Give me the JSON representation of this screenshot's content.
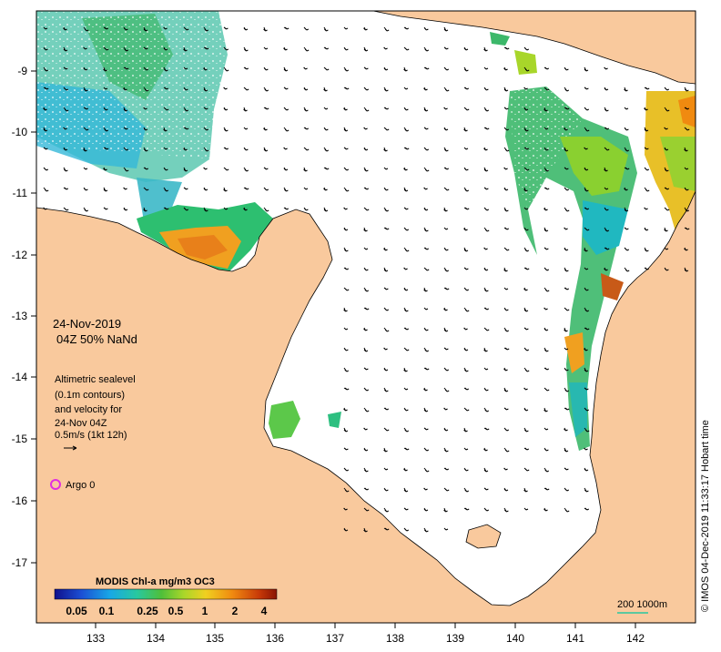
{
  "map": {
    "x_ticks": [
      "133",
      "134",
      "135",
      "136",
      "137",
      "138",
      "139",
      "140",
      "141",
      "142"
    ],
    "y_ticks": [
      "-9",
      "-10",
      "-11",
      "-12",
      "-13",
      "-14",
      "-15",
      "-16",
      "-17"
    ],
    "colors": {
      "land": "#f9c99d",
      "water": "#ffffff",
      "coast": "#000000"
    }
  },
  "annotation": {
    "date": "24-Nov-2019",
    "time": "04Z  50% NaNd",
    "note_lines": [
      "Altimetric sealevel",
      "(0.1m contours)",
      "and velocity for",
      "24-Nov 04Z",
      "0.5m/s  (1kt 12h)"
    ],
    "argo_label": "Argo 0"
  },
  "colorbar": {
    "title": "MODIS Chl-a mg/m3 OC3",
    "ticks": [
      "0.05",
      "0.1",
      "0.25",
      "0.5",
      "1",
      "2",
      "4"
    ],
    "stops": [
      "#10108c",
      "#1b4fd4",
      "#18a8e6",
      "#28c8a0",
      "#4fbf3a",
      "#a8d62a",
      "#f0d020",
      "#f08a10",
      "#c83a08",
      "#8a1404"
    ]
  },
  "scale_bar": {
    "label": "200  1000m"
  },
  "credit": "© IMOS 04-Dec-2019 11:33:17 Hobart time"
}
